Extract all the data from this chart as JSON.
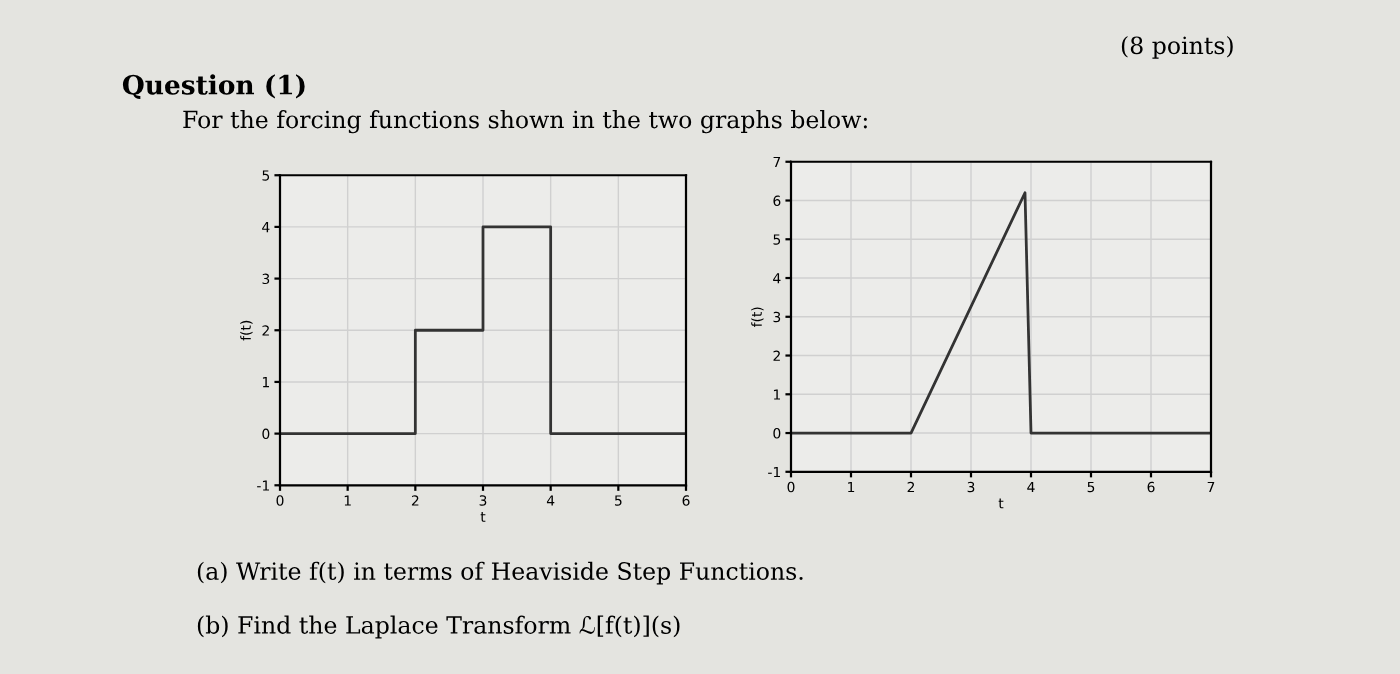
{
  "chart_data": [
    {
      "type": "line",
      "title": "Question (1)",
      "subtitle": "For the forcing functions shown in the two graphs below:",
      "annotations": [
        "(8 points)",
        "(a) Write f(t) in terms of Heaviside Step Functions.",
        "(b) Find the Laplace Transform ℒ[f(t)](s)"
      ],
      "xlabel": "t",
      "ylabel": "f(t)",
      "series": [
        {
          "color": "#333333",
          "x": [
            0,
            2,
            2,
            3,
            3,
            4,
            4,
            6
          ],
          "values": [
            0,
            0,
            2,
            2,
            4,
            4,
            0,
            0
          ]
        }
      ],
      "xlim": [
        0,
        6
      ],
      "ylim": [
        -1,
        5
      ],
      "xticks": [
        0,
        1,
        2,
        3,
        4,
        5,
        6
      ],
      "yticks": [
        -1,
        0,
        1,
        2,
        3,
        4,
        5
      ],
      "grid": true
    },
    {
      "type": "line",
      "xlabel": "t",
      "ylabel": "f(t)",
      "series": [
        {
          "color": "#333333",
          "x": [
            0,
            2,
            3.9,
            4,
            7
          ],
          "values": [
            0,
            0,
            6.2,
            0,
            0
          ]
        }
      ],
      "xlim": [
        0,
        7
      ],
      "ylim": [
        -1,
        7
      ],
      "xticks": [
        0,
        1,
        2,
        3,
        4,
        5,
        6,
        7
      ],
      "yticks": [
        -1,
        0,
        1,
        2,
        3,
        4,
        5,
        6,
        7
      ],
      "grid": true
    }
  ]
}
